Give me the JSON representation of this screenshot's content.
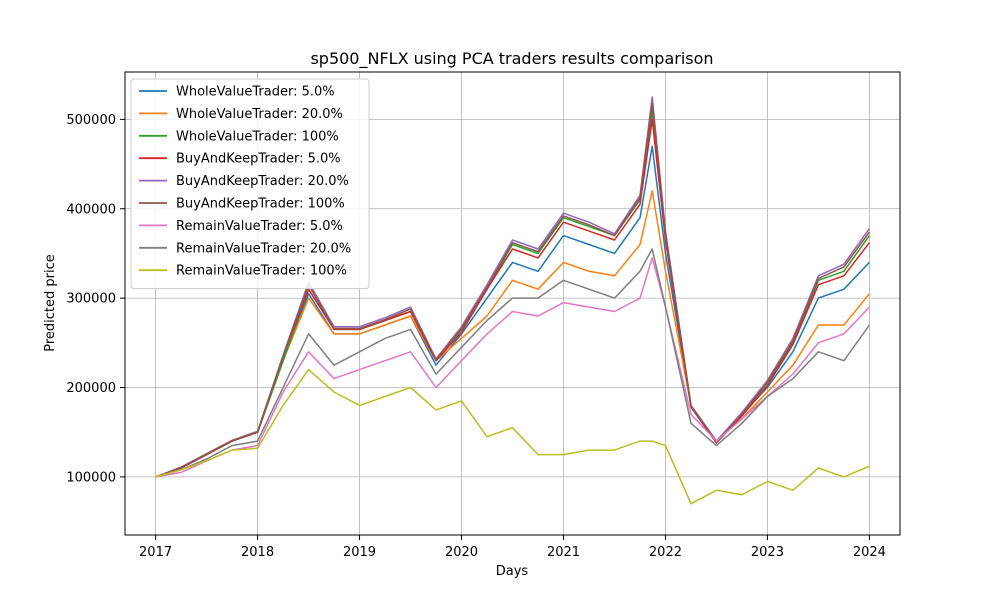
{
  "chart_data": {
    "type": "line",
    "title": "sp500_NFLX using PCA traders results comparison",
    "xlabel": "Days",
    "ylabel": "Predicted price",
    "xlim": [
      2016.7,
      2024.3
    ],
    "ylim": [
      35000,
      553000
    ],
    "x_ticks": [
      2017,
      2018,
      2019,
      2020,
      2021,
      2022,
      2023,
      2024
    ],
    "x_tick_labels": [
      "2017",
      "2018",
      "2019",
      "2020",
      "2021",
      "2022",
      "2023",
      "2024"
    ],
    "y_ticks": [
      100000,
      200000,
      300000,
      400000,
      500000
    ],
    "y_tick_labels": [
      "100000",
      "200000",
      "300000",
      "400000",
      "500000"
    ],
    "grid": true,
    "legend_position": "top-left",
    "x": [
      2017.0,
      2017.25,
      2017.5,
      2017.75,
      2018.0,
      2018.25,
      2018.5,
      2018.75,
      2019.0,
      2019.25,
      2019.5,
      2019.75,
      2020.0,
      2020.25,
      2020.5,
      2020.75,
      2021.0,
      2021.25,
      2021.5,
      2021.75,
      2021.87,
      2022.0,
      2022.25,
      2022.5,
      2022.75,
      2023.0,
      2023.25,
      2023.5,
      2023.75,
      2024.0
    ],
    "series": [
      {
        "name": "WholeValueTrader: 5.0%",
        "color": "#1f77b4",
        "values": [
          100000,
          110000,
          125000,
          140000,
          150000,
          230000,
          305000,
          260000,
          260000,
          270000,
          280000,
          225000,
          260000,
          300000,
          340000,
          330000,
          370000,
          360000,
          350000,
          390000,
          470000,
          350000,
          180000,
          140000,
          170000,
          200000,
          240000,
          300000,
          310000,
          340000
        ]
      },
      {
        "name": "WholeValueTrader: 20.0%",
        "color": "#ff7f0e",
        "values": [
          100000,
          110000,
          125000,
          140000,
          150000,
          230000,
          300000,
          260000,
          260000,
          270000,
          280000,
          230000,
          255000,
          280000,
          320000,
          310000,
          340000,
          330000,
          325000,
          360000,
          420000,
          330000,
          180000,
          140000,
          165000,
          195000,
          225000,
          270000,
          270000,
          305000
        ]
      },
      {
        "name": "WholeValueTrader: 100%",
        "color": "#2ca02c",
        "values": [
          100000,
          110000,
          125000,
          140000,
          150000,
          230000,
          310000,
          265000,
          265000,
          275000,
          285000,
          230000,
          265000,
          310000,
          360000,
          350000,
          390000,
          380000,
          370000,
          410000,
          510000,
          370000,
          180000,
          140000,
          170000,
          205000,
          250000,
          320000,
          330000,
          370000
        ]
      },
      {
        "name": "BuyAndKeepTrader: 5.0%",
        "color": "#d62728",
        "values": [
          100000,
          110000,
          125000,
          140000,
          150000,
          235000,
          310000,
          265000,
          265000,
          275000,
          285000,
          230000,
          262000,
          310000,
          355000,
          345000,
          385000,
          375000,
          365000,
          405000,
          500000,
          365000,
          178000,
          138000,
          168000,
          202000,
          248000,
          315000,
          325000,
          362000
        ]
      },
      {
        "name": "BuyAndKeepTrader: 20.0%",
        "color": "#9467bd",
        "values": [
          100000,
          111000,
          126000,
          141000,
          151000,
          236000,
          318000,
          268000,
          268000,
          278000,
          290000,
          232000,
          268000,
          315000,
          365000,
          355000,
          395000,
          385000,
          372000,
          415000,
          525000,
          375000,
          180000,
          140000,
          172000,
          208000,
          255000,
          325000,
          338000,
          378000
        ]
      },
      {
        "name": "BuyAndKeepTrader: 100%",
        "color": "#8c564b",
        "values": [
          100000,
          110500,
          125500,
          140500,
          150500,
          235000,
          315000,
          266000,
          266000,
          276000,
          288000,
          231000,
          266000,
          312000,
          362000,
          352000,
          392000,
          382000,
          370000,
          412000,
          518000,
          372000,
          179000,
          139000,
          170000,
          206000,
          252000,
          322000,
          335000,
          374000
        ]
      },
      {
        "name": "RemainValueTrader: 5.0%",
        "color": "#e377c2",
        "values": [
          100000,
          105000,
          118000,
          130000,
          135000,
          195000,
          240000,
          210000,
          220000,
          230000,
          240000,
          200000,
          230000,
          260000,
          285000,
          280000,
          295000,
          290000,
          285000,
          300000,
          345000,
          290000,
          170000,
          140000,
          165000,
          190000,
          215000,
          250000,
          260000,
          290000
        ]
      },
      {
        "name": "RemainValueTrader: 20.0%",
        "color": "#7f7f7f",
        "values": [
          100000,
          108000,
          120000,
          135000,
          140000,
          200000,
          260000,
          225000,
          240000,
          255000,
          265000,
          215000,
          245000,
          275000,
          300000,
          300000,
          320000,
          310000,
          300000,
          330000,
          355000,
          290000,
          160000,
          135000,
          160000,
          190000,
          210000,
          240000,
          230000,
          270000
        ]
      },
      {
        "name": "RemainValueTrader: 100%",
        "color": "#bcbd22",
        "values": [
          100000,
          108000,
          118000,
          130000,
          132000,
          180000,
          220000,
          195000,
          180000,
          190000,
          200000,
          175000,
          185000,
          145000,
          155000,
          125000,
          125000,
          130000,
          130000,
          140000,
          140000,
          135000,
          70000,
          85000,
          80000,
          95000,
          85000,
          110000,
          100000,
          112000
        ]
      }
    ]
  }
}
